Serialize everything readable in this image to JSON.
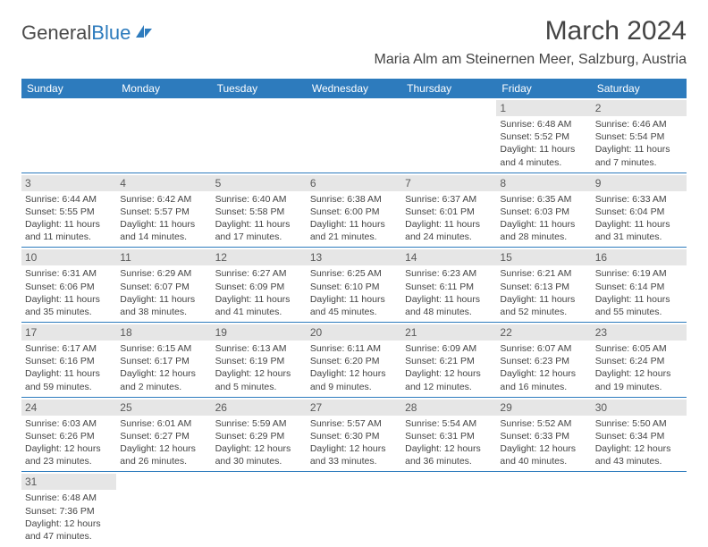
{
  "logo": {
    "general": "General",
    "blue": "Blue"
  },
  "header": {
    "month_title": "March 2024",
    "location": "Maria Alm am Steinernen Meer, Salzburg, Austria"
  },
  "colors": {
    "header_bg": "#2d7bbd",
    "header_text": "#ffffff",
    "daynum_bg": "#e6e6e6",
    "daynum_text": "#595959",
    "row_divider": "#2d7bbd",
    "body_text": "#444444"
  },
  "weekdays": [
    "Sunday",
    "Monday",
    "Tuesday",
    "Wednesday",
    "Thursday",
    "Friday",
    "Saturday"
  ],
  "weeks": [
    [
      null,
      null,
      null,
      null,
      null,
      {
        "n": "1",
        "sunrise": "Sunrise: 6:48 AM",
        "sunset": "Sunset: 5:52 PM",
        "daylight": "Daylight: 11 hours and 4 minutes."
      },
      {
        "n": "2",
        "sunrise": "Sunrise: 6:46 AM",
        "sunset": "Sunset: 5:54 PM",
        "daylight": "Daylight: 11 hours and 7 minutes."
      }
    ],
    [
      {
        "n": "3",
        "sunrise": "Sunrise: 6:44 AM",
        "sunset": "Sunset: 5:55 PM",
        "daylight": "Daylight: 11 hours and 11 minutes."
      },
      {
        "n": "4",
        "sunrise": "Sunrise: 6:42 AM",
        "sunset": "Sunset: 5:57 PM",
        "daylight": "Daylight: 11 hours and 14 minutes."
      },
      {
        "n": "5",
        "sunrise": "Sunrise: 6:40 AM",
        "sunset": "Sunset: 5:58 PM",
        "daylight": "Daylight: 11 hours and 17 minutes."
      },
      {
        "n": "6",
        "sunrise": "Sunrise: 6:38 AM",
        "sunset": "Sunset: 6:00 PM",
        "daylight": "Daylight: 11 hours and 21 minutes."
      },
      {
        "n": "7",
        "sunrise": "Sunrise: 6:37 AM",
        "sunset": "Sunset: 6:01 PM",
        "daylight": "Daylight: 11 hours and 24 minutes."
      },
      {
        "n": "8",
        "sunrise": "Sunrise: 6:35 AM",
        "sunset": "Sunset: 6:03 PM",
        "daylight": "Daylight: 11 hours and 28 minutes."
      },
      {
        "n": "9",
        "sunrise": "Sunrise: 6:33 AM",
        "sunset": "Sunset: 6:04 PM",
        "daylight": "Daylight: 11 hours and 31 minutes."
      }
    ],
    [
      {
        "n": "10",
        "sunrise": "Sunrise: 6:31 AM",
        "sunset": "Sunset: 6:06 PM",
        "daylight": "Daylight: 11 hours and 35 minutes."
      },
      {
        "n": "11",
        "sunrise": "Sunrise: 6:29 AM",
        "sunset": "Sunset: 6:07 PM",
        "daylight": "Daylight: 11 hours and 38 minutes."
      },
      {
        "n": "12",
        "sunrise": "Sunrise: 6:27 AM",
        "sunset": "Sunset: 6:09 PM",
        "daylight": "Daylight: 11 hours and 41 minutes."
      },
      {
        "n": "13",
        "sunrise": "Sunrise: 6:25 AM",
        "sunset": "Sunset: 6:10 PM",
        "daylight": "Daylight: 11 hours and 45 minutes."
      },
      {
        "n": "14",
        "sunrise": "Sunrise: 6:23 AM",
        "sunset": "Sunset: 6:11 PM",
        "daylight": "Daylight: 11 hours and 48 minutes."
      },
      {
        "n": "15",
        "sunrise": "Sunrise: 6:21 AM",
        "sunset": "Sunset: 6:13 PM",
        "daylight": "Daylight: 11 hours and 52 minutes."
      },
      {
        "n": "16",
        "sunrise": "Sunrise: 6:19 AM",
        "sunset": "Sunset: 6:14 PM",
        "daylight": "Daylight: 11 hours and 55 minutes."
      }
    ],
    [
      {
        "n": "17",
        "sunrise": "Sunrise: 6:17 AM",
        "sunset": "Sunset: 6:16 PM",
        "daylight": "Daylight: 11 hours and 59 minutes."
      },
      {
        "n": "18",
        "sunrise": "Sunrise: 6:15 AM",
        "sunset": "Sunset: 6:17 PM",
        "daylight": "Daylight: 12 hours and 2 minutes."
      },
      {
        "n": "19",
        "sunrise": "Sunrise: 6:13 AM",
        "sunset": "Sunset: 6:19 PM",
        "daylight": "Daylight: 12 hours and 5 minutes."
      },
      {
        "n": "20",
        "sunrise": "Sunrise: 6:11 AM",
        "sunset": "Sunset: 6:20 PM",
        "daylight": "Daylight: 12 hours and 9 minutes."
      },
      {
        "n": "21",
        "sunrise": "Sunrise: 6:09 AM",
        "sunset": "Sunset: 6:21 PM",
        "daylight": "Daylight: 12 hours and 12 minutes."
      },
      {
        "n": "22",
        "sunrise": "Sunrise: 6:07 AM",
        "sunset": "Sunset: 6:23 PM",
        "daylight": "Daylight: 12 hours and 16 minutes."
      },
      {
        "n": "23",
        "sunrise": "Sunrise: 6:05 AM",
        "sunset": "Sunset: 6:24 PM",
        "daylight": "Daylight: 12 hours and 19 minutes."
      }
    ],
    [
      {
        "n": "24",
        "sunrise": "Sunrise: 6:03 AM",
        "sunset": "Sunset: 6:26 PM",
        "daylight": "Daylight: 12 hours and 23 minutes."
      },
      {
        "n": "25",
        "sunrise": "Sunrise: 6:01 AM",
        "sunset": "Sunset: 6:27 PM",
        "daylight": "Daylight: 12 hours and 26 minutes."
      },
      {
        "n": "26",
        "sunrise": "Sunrise: 5:59 AM",
        "sunset": "Sunset: 6:29 PM",
        "daylight": "Daylight: 12 hours and 30 minutes."
      },
      {
        "n": "27",
        "sunrise": "Sunrise: 5:57 AM",
        "sunset": "Sunset: 6:30 PM",
        "daylight": "Daylight: 12 hours and 33 minutes."
      },
      {
        "n": "28",
        "sunrise": "Sunrise: 5:54 AM",
        "sunset": "Sunset: 6:31 PM",
        "daylight": "Daylight: 12 hours and 36 minutes."
      },
      {
        "n": "29",
        "sunrise": "Sunrise: 5:52 AM",
        "sunset": "Sunset: 6:33 PM",
        "daylight": "Daylight: 12 hours and 40 minutes."
      },
      {
        "n": "30",
        "sunrise": "Sunrise: 5:50 AM",
        "sunset": "Sunset: 6:34 PM",
        "daylight": "Daylight: 12 hours and 43 minutes."
      }
    ],
    [
      {
        "n": "31",
        "sunrise": "Sunrise: 6:48 AM",
        "sunset": "Sunset: 7:36 PM",
        "daylight": "Daylight: 12 hours and 47 minutes."
      },
      null,
      null,
      null,
      null,
      null,
      null
    ]
  ]
}
